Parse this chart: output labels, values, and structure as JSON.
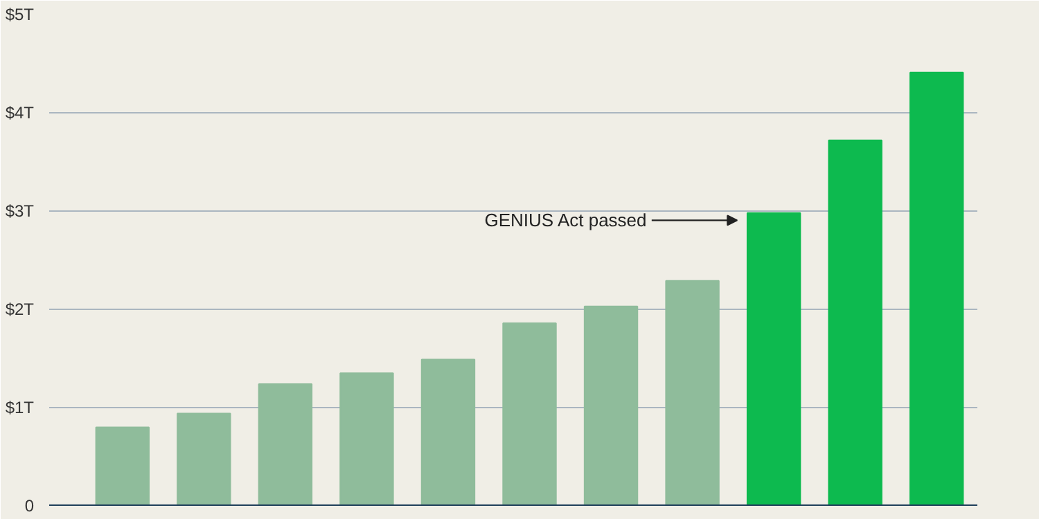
{
  "chart_data": {
    "type": "bar",
    "categories": [
      null,
      null,
      null,
      null,
      null,
      null,
      null,
      null,
      null,
      null,
      null
    ],
    "values": [
      0.8,
      0.94,
      1.24,
      1.35,
      1.49,
      1.86,
      2.03,
      2.29,
      2.98,
      3.72,
      4.41
    ],
    "colors": [
      "#8fbc9b",
      "#8fbc9b",
      "#8fbc9b",
      "#8fbc9b",
      "#8fbc9b",
      "#8fbc9b",
      "#8fbc9b",
      "#8fbc9b",
      "#0dba4f",
      "#0dba4f",
      "#0dba4f"
    ],
    "ylim": [
      0,
      5
    ],
    "yticks": [
      0,
      {
        "value": 1,
        "label": "$1T"
      },
      {
        "value": 2,
        "label": "$2T"
      },
      {
        "value": 3,
        "label": "$3T"
      },
      {
        "value": 4,
        "label": "$4T"
      },
      {
        "value": 5,
        "label": "$5T"
      }
    ],
    "grid": "y",
    "annotations": [
      "GENIUS Act passed"
    ]
  }
}
